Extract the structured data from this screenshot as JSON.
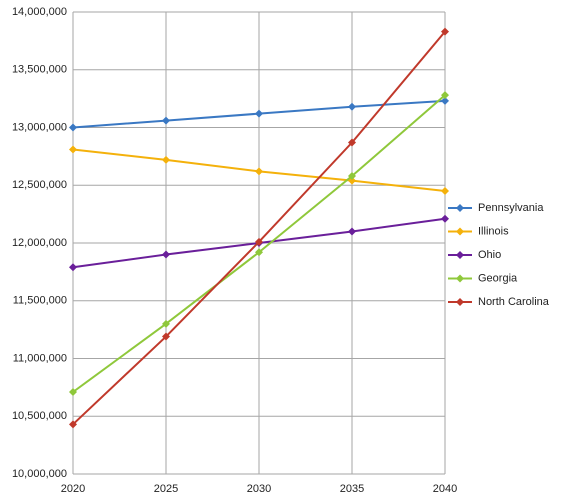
{
  "chart_data": {
    "type": "line",
    "x": [
      2020,
      2025,
      2030,
      2035,
      2040
    ],
    "xlim": [
      2020,
      2040
    ],
    "xticks": [
      2020,
      2025,
      2030,
      2035,
      2040
    ],
    "ylim": [
      10000000,
      14000000
    ],
    "yticks": [
      {
        "value": 10000000,
        "label": "10,000,000"
      },
      {
        "value": 10500000,
        "label": "10,500,000"
      },
      {
        "value": 11000000,
        "label": "11,000,000"
      },
      {
        "value": 11500000,
        "label": "11,500,000"
      },
      {
        "value": 12000000,
        "label": "12,000,000"
      },
      {
        "value": 12500000,
        "label": "12,500,000"
      },
      {
        "value": 13000000,
        "label": "13,000,000"
      },
      {
        "value": 13500000,
        "label": "13,500,000"
      },
      {
        "value": 14000000,
        "label": "14,000,000"
      }
    ],
    "grid": true,
    "legend": "right",
    "series": [
      {
        "name": "Pennsylvania",
        "color": "#3a78c3",
        "values": [
          13000000,
          13060000,
          13120000,
          13180000,
          13230000
        ]
      },
      {
        "name": "Illinois",
        "color": "#f4b10b",
        "values": [
          12810000,
          12720000,
          12620000,
          12540000,
          12450000
        ]
      },
      {
        "name": "Ohio",
        "color": "#6a1f9a",
        "values": [
          11790000,
          11900000,
          12000000,
          12100000,
          12210000
        ]
      },
      {
        "name": "Georgia",
        "color": "#8fc83b",
        "values": [
          10710000,
          11300000,
          11920000,
          12580000,
          13280000
        ]
      },
      {
        "name": "North Carolina",
        "color": "#c0392b",
        "values": [
          10430000,
          11190000,
          12010000,
          12870000,
          13830000
        ]
      }
    ]
  }
}
